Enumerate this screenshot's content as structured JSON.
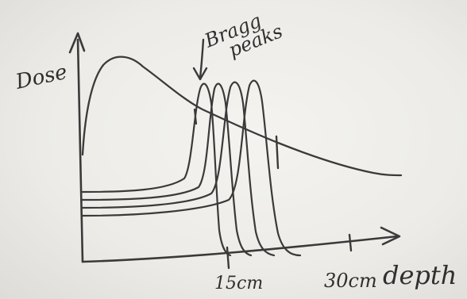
{
  "axes": {
    "y_label": "Dose",
    "x_label": "depth",
    "x_ticks": [
      "15cm",
      "30cm"
    ]
  },
  "annotation": {
    "line1": "Bragg",
    "line2": "peaks"
  },
  "colors": {
    "ink": "#3a3a3a",
    "board": "#efeeea"
  }
}
